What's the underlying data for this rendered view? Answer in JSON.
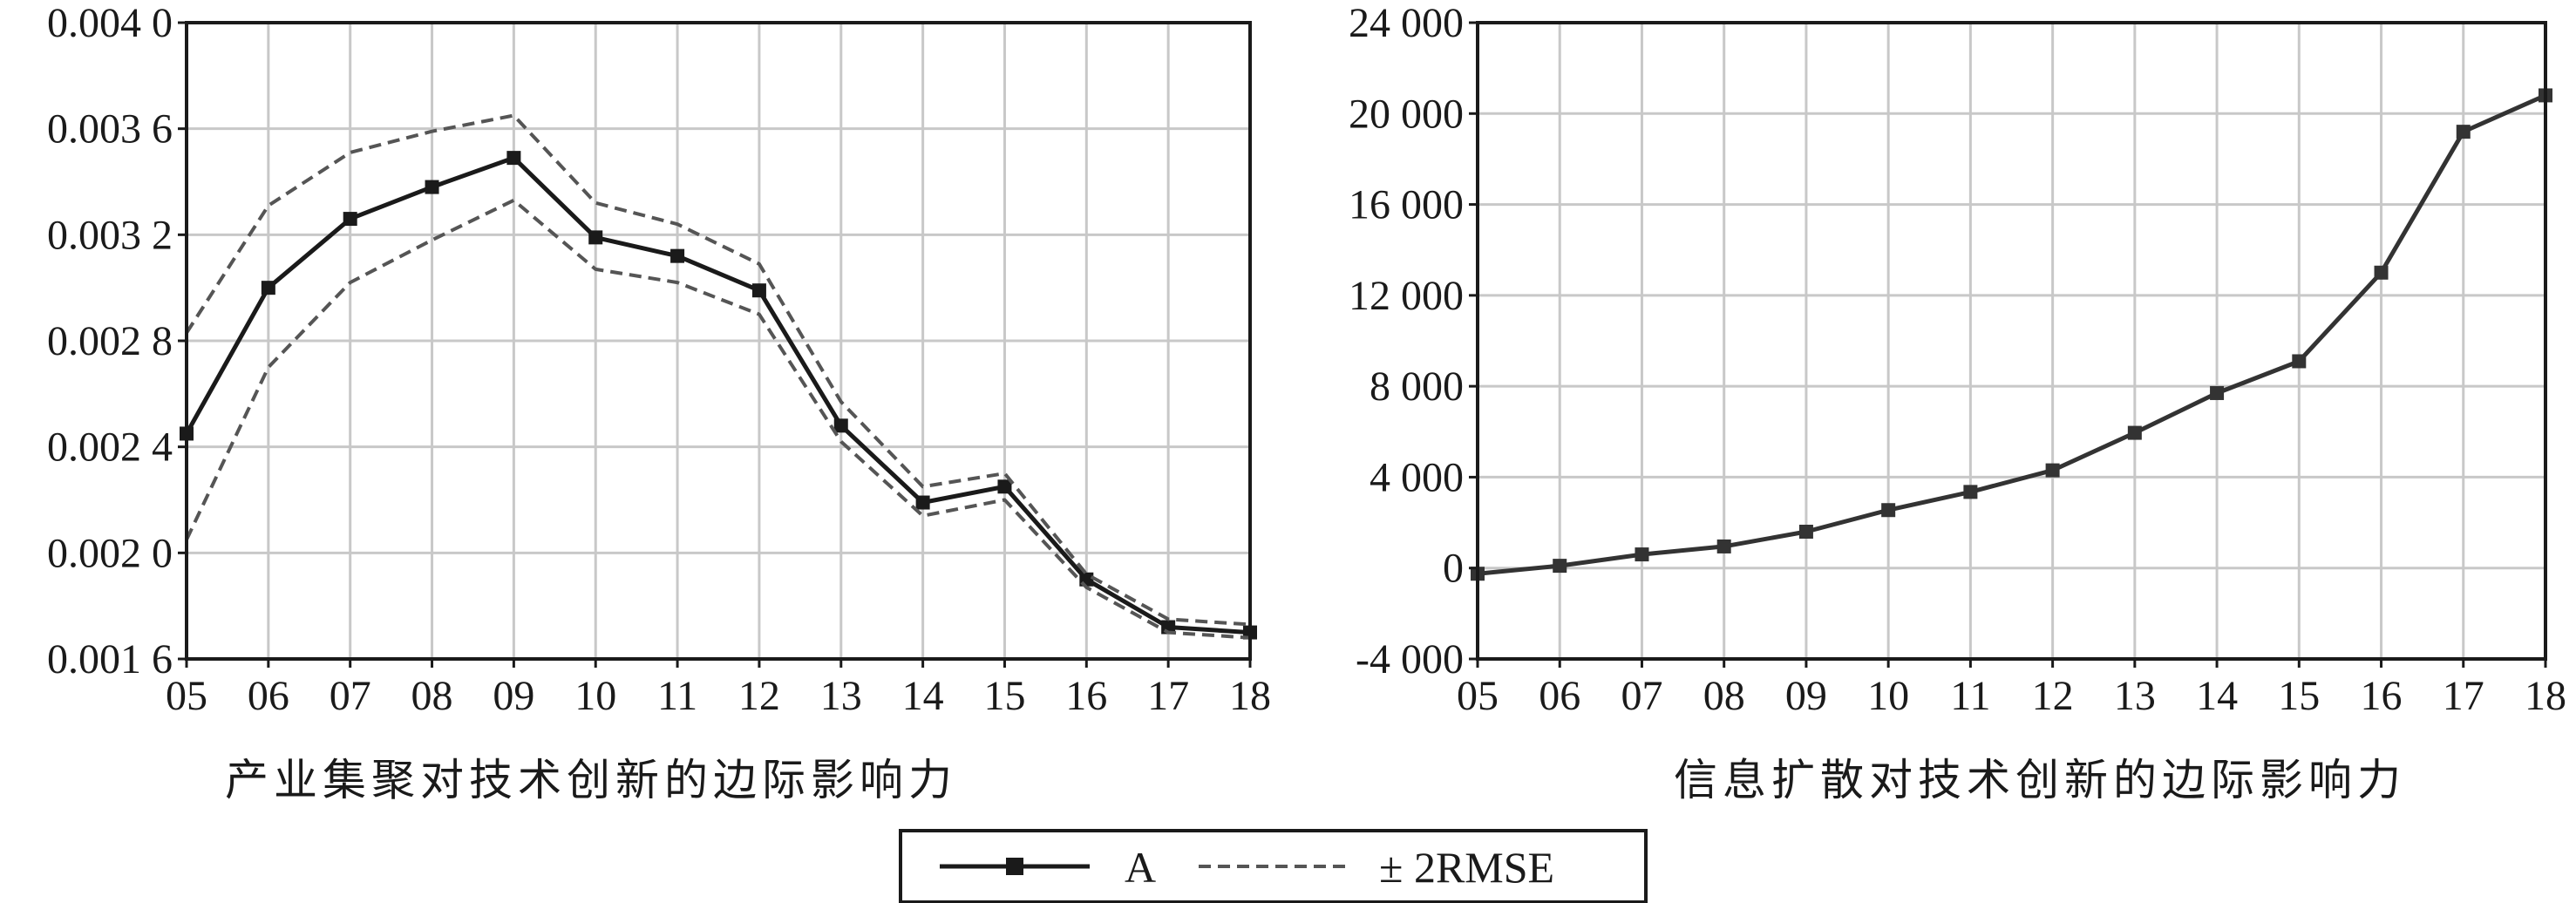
{
  "chart_data": [
    {
      "type": "line",
      "caption": "产业集聚对技术创新的边际影响力",
      "categories": [
        "05",
        "06",
        "07",
        "08",
        "09",
        "10",
        "11",
        "12",
        "13",
        "14",
        "15",
        "16",
        "17",
        "18"
      ],
      "ylim": [
        0.0016,
        0.004
      ],
      "yticks": [
        0.0016,
        0.002,
        0.0024,
        0.0028,
        0.0032,
        0.0036,
        0.004
      ],
      "ytick_labels": [
        "0.001 6",
        "0.002 0",
        "0.002 4",
        "0.002 8",
        "0.003 2",
        "0.003 6",
        "0.004 0"
      ],
      "grid": true,
      "series": [
        {
          "name": "A",
          "style": "solid-square-markers",
          "color": "#1a1a1a",
          "values": [
            0.00245,
            0.003,
            0.00326,
            0.00338,
            0.00349,
            0.00319,
            0.00312,
            0.00299,
            0.00248,
            0.00219,
            0.00225,
            0.0019,
            0.00172,
            0.0017
          ]
        },
        {
          "name": "± 2RMSE",
          "style": "dashed",
          "color": "#555555",
          "values": [
            0.00283,
            0.00331,
            0.00351,
            0.00359,
            0.00365,
            0.00332,
            0.00324,
            0.00309,
            0.00257,
            0.00225,
            0.0023,
            0.00192,
            0.00175,
            0.00173
          ]
        },
        {
          "name": "± 2RMSE",
          "style": "dashed",
          "color": "#555555",
          "values": [
            0.00205,
            0.0027,
            0.00302,
            0.00318,
            0.00333,
            0.00307,
            0.00302,
            0.0029,
            0.00242,
            0.00214,
            0.0022,
            0.00187,
            0.0017,
            0.00168
          ]
        }
      ]
    },
    {
      "type": "line",
      "caption": "信息扩散对技术创新的边际影响力",
      "categories": [
        "05",
        "06",
        "07",
        "08",
        "09",
        "10",
        "11",
        "12",
        "13",
        "14",
        "15",
        "16",
        "17",
        "18"
      ],
      "ylim": [
        -4000,
        24000
      ],
      "yticks": [
        -4000,
        0,
        4000,
        8000,
        12000,
        16000,
        20000,
        24000
      ],
      "ytick_labels": [
        "-4 000",
        "0",
        "4 000",
        "8 000",
        "12 000",
        "16 000",
        "20 000",
        "24 000"
      ],
      "grid": true,
      "series": [
        {
          "name": "A",
          "style": "solid-square-markers",
          "color": "#333333",
          "values": [
            -250,
            100,
            600,
            950,
            1600,
            2550,
            3350,
            4300,
            5950,
            7700,
            9100,
            13000,
            19200,
            20800
          ]
        }
      ]
    }
  ],
  "legend": {
    "placement": "bottom-center",
    "items": [
      {
        "label": "A",
        "style": "solid-square-markers"
      },
      {
        "label": "± 2RMSE",
        "style": "dashed"
      }
    ]
  }
}
